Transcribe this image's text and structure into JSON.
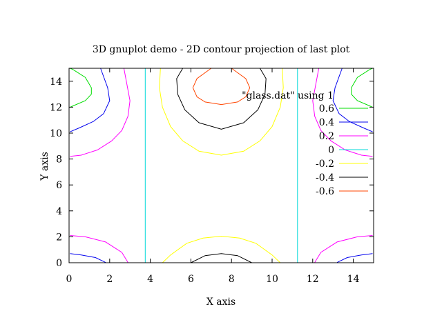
{
  "chart_data": {
    "type": "contour",
    "title": "3D gnuplot demo - 2D contour projection of last plot",
    "xlabel": "X axis",
    "ylabel": "Y axis",
    "xlim": [
      0,
      15
    ],
    "ylim": [
      0,
      15
    ],
    "xticks": [
      "0",
      "2",
      "4",
      "6",
      "8",
      "10",
      "12",
      "14"
    ],
    "yticks": [
      "0",
      "2",
      "4",
      "6",
      "8",
      "10",
      "12",
      "14"
    ],
    "legend_title": "\"glass.dat\" using 1",
    "legend_position": "top-right",
    "grid": false,
    "series": [
      {
        "name": "0.6",
        "color": "#00dd00",
        "paths": [
          [
            [
              0.05,
              15
            ],
            [
              0.2,
              14.9
            ],
            [
              0.8,
              14.3
            ],
            [
              1.1,
              13.5
            ],
            [
              1.1,
              13.0
            ],
            [
              0.8,
              12.5
            ],
            [
              0.2,
              12.1
            ],
            [
              0.05,
              12.0
            ]
          ],
          [
            [
              14.95,
              15
            ],
            [
              14.8,
              14.9
            ],
            [
              14.2,
              14.3
            ],
            [
              13.9,
              13.5
            ],
            [
              13.9,
              13.0
            ],
            [
              14.2,
              12.5
            ],
            [
              14.8,
              12.1
            ],
            [
              14.95,
              12.0
            ]
          ]
        ]
      },
      {
        "name": "0.4",
        "color": "#0000ee",
        "paths": [
          [
            [
              1.55,
              15
            ],
            [
              1.9,
              13.5
            ],
            [
              2.0,
              12.5
            ],
            [
              1.7,
              11.5
            ],
            [
              1.2,
              10.9
            ],
            [
              0.5,
              10.4
            ],
            [
              0.05,
              10.1
            ]
          ],
          [
            [
              13.45,
              15
            ],
            [
              13.1,
              13.5
            ],
            [
              13.0,
              12.5
            ],
            [
              13.3,
              11.5
            ],
            [
              13.8,
              10.9
            ],
            [
              14.5,
              10.4
            ],
            [
              14.95,
              10.1
            ]
          ],
          [
            [
              0.05,
              0.7
            ],
            [
              0.6,
              0.6
            ],
            [
              1.3,
              0.4
            ],
            [
              1.8,
              0.02
            ]
          ],
          [
            [
              14.95,
              0.7
            ],
            [
              14.4,
              0.6
            ],
            [
              13.7,
              0.4
            ],
            [
              13.2,
              0.02
            ]
          ]
        ]
      },
      {
        "name": "0.2",
        "color": "#ff00ff",
        "paths": [
          [
            [
              2.7,
              15
            ],
            [
              3.0,
              12.5
            ],
            [
              2.9,
              11.3
            ],
            [
              2.6,
              10.2
            ],
            [
              2.1,
              9.4
            ],
            [
              1.4,
              8.7
            ],
            [
              0.6,
              8.3
            ],
            [
              0.05,
              8.2
            ]
          ],
          [
            [
              12.3,
              15
            ],
            [
              12.0,
              12.5
            ],
            [
              12.1,
              11.3
            ],
            [
              12.4,
              10.2
            ],
            [
              12.9,
              9.4
            ],
            [
              13.6,
              8.7
            ],
            [
              14.4,
              8.3
            ],
            [
              14.95,
              8.2
            ]
          ],
          [
            [
              0.05,
              2.1
            ],
            [
              0.8,
              2.0
            ],
            [
              1.8,
              1.6
            ],
            [
              2.6,
              0.8
            ],
            [
              2.9,
              0.02
            ]
          ],
          [
            [
              14.95,
              2.1
            ],
            [
              14.2,
              2.0
            ],
            [
              13.2,
              1.6
            ],
            [
              12.4,
              0.8
            ],
            [
              12.1,
              0.02
            ]
          ]
        ]
      },
      {
        "name": "0",
        "color": "#00d8d8",
        "paths": [
          [
            [
              3.75,
              0
            ],
            [
              3.75,
              15
            ]
          ],
          [
            [
              11.25,
              0
            ],
            [
              11.25,
              15
            ]
          ]
        ]
      },
      {
        "name": "-0.2",
        "color": "#ffff00",
        "paths": [
          [
            [
              4.5,
              15
            ],
            [
              4.45,
              13.5
            ],
            [
              4.6,
              12.0
            ],
            [
              5.0,
              10.5
            ],
            [
              5.6,
              9.4
            ],
            [
              6.4,
              8.6
            ],
            [
              7.5,
              8.3
            ],
            [
              8.6,
              8.6
            ],
            [
              9.4,
              9.4
            ],
            [
              10.0,
              10.5
            ],
            [
              10.4,
              12.0
            ],
            [
              10.55,
              13.5
            ],
            [
              10.5,
              15
            ]
          ],
          [
            [
              4.6,
              0
            ],
            [
              5.0,
              0.6
            ],
            [
              5.8,
              1.5
            ],
            [
              6.6,
              1.9
            ],
            [
              7.5,
              2.05
            ],
            [
              8.4,
              1.9
            ],
            [
              9.2,
              1.5
            ],
            [
              10.0,
              0.6
            ],
            [
              10.4,
              0
            ]
          ]
        ]
      },
      {
        "name": "-0.4",
        "color": "#000000",
        "paths": [
          [
            [
              5.6,
              15
            ],
            [
              5.3,
              14.2
            ],
            [
              5.35,
              13.0
            ],
            [
              5.7,
              11.8
            ],
            [
              6.4,
              10.8
            ],
            [
              7.5,
              10.3
            ],
            [
              8.6,
              10.8
            ],
            [
              9.3,
              11.8
            ],
            [
              9.65,
              13.0
            ],
            [
              9.7,
              14.2
            ],
            [
              9.4,
              15
            ]
          ],
          [
            [
              6.0,
              0
            ],
            [
              6.7,
              0.55
            ],
            [
              7.5,
              0.7
            ],
            [
              8.3,
              0.55
            ],
            [
              9.0,
              0
            ]
          ]
        ]
      },
      {
        "name": "-0.6",
        "color": "#ff4500",
        "paths": [
          [
            [
              7.0,
              15
            ],
            [
              6.3,
              14.2
            ],
            [
              6.1,
              13.5
            ],
            [
              6.3,
              12.8
            ],
            [
              6.7,
              12.4
            ],
            [
              7.5,
              12.2
            ],
            [
              8.3,
              12.4
            ],
            [
              8.7,
              12.8
            ],
            [
              8.9,
              13.5
            ],
            [
              8.7,
              14.2
            ],
            [
              8.0,
              15
            ]
          ]
        ]
      }
    ]
  }
}
